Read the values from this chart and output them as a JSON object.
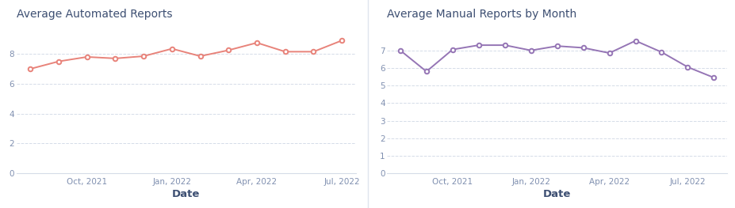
{
  "automated": {
    "title": "Average Automated Reports",
    "xlabel": "Date",
    "color": "#E8837A",
    "values": [
      7.0,
      7.5,
      7.8,
      7.7,
      7.85,
      8.35,
      7.85,
      8.25,
      8.75,
      8.15,
      8.15,
      8.9
    ],
    "ylim": [
      0,
      10
    ],
    "yticks": [
      0,
      2,
      4,
      6,
      8
    ],
    "xtick_positions": [
      2,
      5,
      8,
      11
    ],
    "xtick_labels": [
      "Oct, 2021",
      "Jan, 2022",
      "Apr, 2022",
      "Jul, 2022"
    ]
  },
  "manual": {
    "title": "Average Manual Reports by Month",
    "xlabel": "Date",
    "color": "#9575B5",
    "values": [
      7.0,
      5.8,
      7.05,
      7.3,
      7.3,
      7.0,
      7.25,
      7.15,
      6.85,
      7.55,
      6.9,
      6.05,
      5.45
    ],
    "ylim": [
      0,
      8.5
    ],
    "yticks": [
      0,
      1,
      2,
      3,
      4,
      5,
      6,
      7
    ],
    "xtick_positions": [
      2,
      5,
      8,
      11
    ],
    "xtick_labels": [
      "Oct, 2021",
      "Jan, 2022",
      "Apr, 2022",
      "Jul, 2022"
    ]
  },
  "bg_color": "#ffffff",
  "grid_color": "#d5dce8",
  "title_color": "#3d4f72",
  "axis_label_color": "#3d4f72",
  "tick_color": "#8090b0",
  "divider_color": "#e0e5ee"
}
